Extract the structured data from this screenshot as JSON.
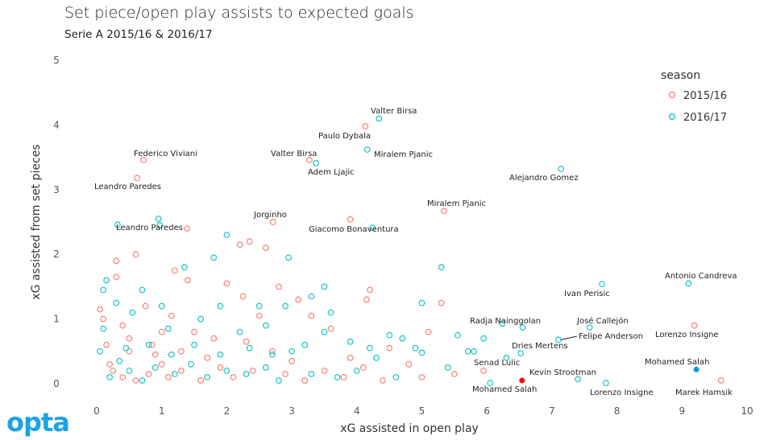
{
  "chart_data": {
    "type": "scatter",
    "title": "Set piece/open play assists to expected goals",
    "subtitle": "Serie A 2015/16 & 2016/17",
    "xlabel": "xG assisted in open play",
    "ylabel": "xG assisted from set pieces",
    "xlim": [
      0,
      10
    ],
    "ylim": [
      0,
      5
    ],
    "xticks": [
      "0",
      "1",
      "2",
      "3",
      "4",
      "5",
      "6",
      "7",
      "8",
      "9",
      "10"
    ],
    "yticks": [
      "0",
      "1",
      "2",
      "3",
      "4",
      "5"
    ],
    "grid": false,
    "legend": {
      "title": "season",
      "placement": "right",
      "entries": [
        "2015/16",
        "2016/17"
      ]
    },
    "colors": {
      "2015/16": "#F8766D",
      "2016/17": "#00BFC4",
      "highlight_2015/16": "#EE1111",
      "highlight_2016/17": "#0A9BE0"
    },
    "labeled_points": [
      {
        "name": "Valter Birsa",
        "season": "2016/17",
        "x": 4.34,
        "y": 4.1
      },
      {
        "name": "Paulo Dybala",
        "season": "2015/16",
        "x": 4.13,
        "y": 3.98
      },
      {
        "name": "Miralem Pjanic",
        "season": "2016/17",
        "x": 4.16,
        "y": 3.62
      },
      {
        "name": "Valter Birsa",
        "season": "2015/16",
        "x": 3.27,
        "y": 3.46
      },
      {
        "name": "Adem Ljajic",
        "season": "2016/17",
        "x": 3.37,
        "y": 3.41
      },
      {
        "name": "Federico Viviani",
        "season": "2015/16",
        "x": 0.72,
        "y": 3.46
      },
      {
        "name": "Leandro Paredes",
        "season": "2015/16",
        "x": 0.62,
        "y": 3.18
      },
      {
        "name": "Alejandro Gomez",
        "season": "2016/17",
        "x": 7.14,
        "y": 3.32
      },
      {
        "name": "Miralem Pjanic",
        "season": "2015/16",
        "x": 5.34,
        "y": 2.67
      },
      {
        "name": "Jorginho",
        "season": "2015/16",
        "x": 2.71,
        "y": 2.5
      },
      {
        "name": "Giacomo Bonaventura",
        "season": "2015/16",
        "x": 3.9,
        "y": 2.54
      },
      {
        "name": "Leandro Paredes",
        "season": "2016/17",
        "x": 0.95,
        "y": 2.55
      },
      {
        "name": "Ivan Perisic",
        "season": "2016/17",
        "x": 7.77,
        "y": 1.54
      },
      {
        "name": "Antonio Candreva",
        "season": "2016/17",
        "x": 9.1,
        "y": 1.55
      },
      {
        "name": "Lorenzo Insigne",
        "season": "2015/16",
        "x": 9.19,
        "y": 0.9
      },
      {
        "name": "Mohamed Salah",
        "season": "2016/17",
        "x": 9.22,
        "y": 0.22,
        "highlight": true
      },
      {
        "name": "Marek Hamsik",
        "season": "2015/16",
        "x": 9.6,
        "y": 0.05
      },
      {
        "name": "José Callejón",
        "season": "2016/17",
        "x": 7.58,
        "y": 0.87
      },
      {
        "name": "Felipe Anderson",
        "season": "2016/17",
        "x": 7.1,
        "y": 0.68
      },
      {
        "name": "Radja Nainggolan",
        "season": "2016/17",
        "x": 6.55,
        "y": 0.87
      },
      {
        "name": "Dries Mertens",
        "season": "2016/17",
        "x": 6.52,
        "y": 0.47
      },
      {
        "name": "Kevin Strootman",
        "season": "2016/17",
        "x": 7.4,
        "y": 0.07
      },
      {
        "name": "Lorenzo Insigne",
        "season": "2016/17",
        "x": 7.83,
        "y": 0.01
      },
      {
        "name": "Mohamed Salah",
        "season": "2015/16",
        "x": 6.54,
        "y": 0.05,
        "highlight": true
      },
      {
        "name": "Senad Lulic",
        "season": "2016/17",
        "x": 5.71,
        "y": 0.5
      }
    ],
    "other_points": {
      "2015/16": [
        [
          0.05,
          1.15
        ],
        [
          0.1,
          1.0
        ],
        [
          0.3,
          1.9
        ],
        [
          0.3,
          1.65
        ],
        [
          0.4,
          0.9
        ],
        [
          0.5,
          0.5
        ],
        [
          0.6,
          2.0
        ],
        [
          0.75,
          1.2
        ],
        [
          0.85,
          0.6
        ],
        [
          1.0,
          0.3
        ],
        [
          1.2,
          1.75
        ],
        [
          1.15,
          1.05
        ],
        [
          1.3,
          0.5
        ],
        [
          1.4,
          1.6
        ],
        [
          1.5,
          0.8
        ],
        [
          1.8,
          0.7
        ],
        [
          2.0,
          1.55
        ],
        [
          2.2,
          2.15
        ],
        [
          2.35,
          2.2
        ],
        [
          2.6,
          2.1
        ],
        [
          2.25,
          1.35
        ],
        [
          2.5,
          1.05
        ],
        [
          2.7,
          0.5
        ],
        [
          2.8,
          1.5
        ],
        [
          3.1,
          1.3
        ],
        [
          3.3,
          1.05
        ],
        [
          3.6,
          0.85
        ],
        [
          3.9,
          0.4
        ],
        [
          4.2,
          1.45
        ],
        [
          4.15,
          1.3
        ],
        [
          4.5,
          0.55
        ],
        [
          4.8,
          0.3
        ],
        [
          5.3,
          1.25
        ],
        [
          5.5,
          0.15
        ],
        [
          5.1,
          0.8
        ],
        [
          0.2,
          0.3
        ],
        [
          0.4,
          0.1
        ],
        [
          0.6,
          0.05
        ],
        [
          0.8,
          0.15
        ],
        [
          1.1,
          0.1
        ],
        [
          1.3,
          0.2
        ],
        [
          1.6,
          0.05
        ],
        [
          1.9,
          0.25
        ],
        [
          2.1,
          0.1
        ],
        [
          2.4,
          0.2
        ],
        [
          2.9,
          0.15
        ],
        [
          3.2,
          0.05
        ],
        [
          3.5,
          0.2
        ],
        [
          3.8,
          0.1
        ],
        [
          4.1,
          0.25
        ],
        [
          0.15,
          0.6
        ],
        [
          0.5,
          0.7
        ],
        [
          0.9,
          0.45
        ],
        [
          1.0,
          0.8
        ],
        [
          1.7,
          0.4
        ],
        [
          2.3,
          0.65
        ],
        [
          3.0,
          0.35
        ],
        [
          4.4,
          0.05
        ],
        [
          5.0,
          0.1
        ],
        [
          0.25,
          0.2
        ],
        [
          1.39,
          2.4
        ],
        [
          5.95,
          0.2
        ]
      ],
      "2016/17": [
        [
          0.05,
          0.5
        ],
        [
          0.1,
          1.45
        ],
        [
          0.15,
          1.6
        ],
        [
          0.3,
          1.25
        ],
        [
          0.55,
          1.1
        ],
        [
          0.7,
          1.45
        ],
        [
          1.0,
          1.2
        ],
        [
          1.1,
          0.85
        ],
        [
          1.35,
          1.8
        ],
        [
          1.6,
          1.0
        ],
        [
          1.8,
          1.95
        ],
        [
          1.9,
          1.2
        ],
        [
          2.0,
          2.3
        ],
        [
          2.2,
          0.8
        ],
        [
          2.35,
          0.55
        ],
        [
          2.5,
          1.2
        ],
        [
          2.6,
          0.9
        ],
        [
          2.95,
          1.95
        ],
        [
          2.9,
          1.2
        ],
        [
          3.0,
          0.5
        ],
        [
          3.3,
          1.35
        ],
        [
          3.5,
          1.5
        ],
        [
          3.6,
          1.1
        ],
        [
          3.5,
          0.8
        ],
        [
          3.9,
          0.65
        ],
        [
          4.3,
          0.4
        ],
        [
          4.5,
          0.75
        ],
        [
          4.7,
          0.7
        ],
        [
          4.9,
          0.55
        ],
        [
          5.0,
          1.25
        ],
        [
          5.3,
          1.8
        ],
        [
          5.4,
          0.25
        ],
        [
          5.55,
          0.75
        ],
        [
          5.8,
          0.5
        ],
        [
          5.95,
          0.7
        ],
        [
          0.2,
          0.1
        ],
        [
          0.35,
          0.35
        ],
        [
          0.5,
          0.2
        ],
        [
          0.7,
          0.05
        ],
        [
          0.9,
          0.25
        ],
        [
          1.2,
          0.15
        ],
        [
          1.45,
          0.3
        ],
        [
          1.7,
          0.1
        ],
        [
          2.0,
          0.2
        ],
        [
          2.3,
          0.15
        ],
        [
          2.6,
          0.25
        ],
        [
          2.8,
          0.05
        ],
        [
          3.3,
          0.15
        ],
        [
          3.7,
          0.1
        ],
        [
          4.0,
          0.2
        ],
        [
          4.6,
          0.1
        ],
        [
          0.1,
          0.85
        ],
        [
          0.45,
          0.55
        ],
        [
          0.8,
          0.6
        ],
        [
          1.15,
          0.45
        ],
        [
          1.5,
          0.6
        ],
        [
          1.9,
          0.45
        ],
        [
          2.7,
          0.45
        ],
        [
          3.2,
          0.6
        ],
        [
          4.2,
          0.55
        ],
        [
          0.32,
          2.46
        ],
        [
          0.97,
          2.45
        ],
        [
          4.24,
          2.41
        ],
        [
          6.24,
          0.93
        ],
        [
          6.05,
          0.01
        ],
        [
          5.0,
          0.48
        ],
        [
          6.3,
          0.4
        ]
      ]
    }
  },
  "branding": {
    "logo": "opta"
  }
}
